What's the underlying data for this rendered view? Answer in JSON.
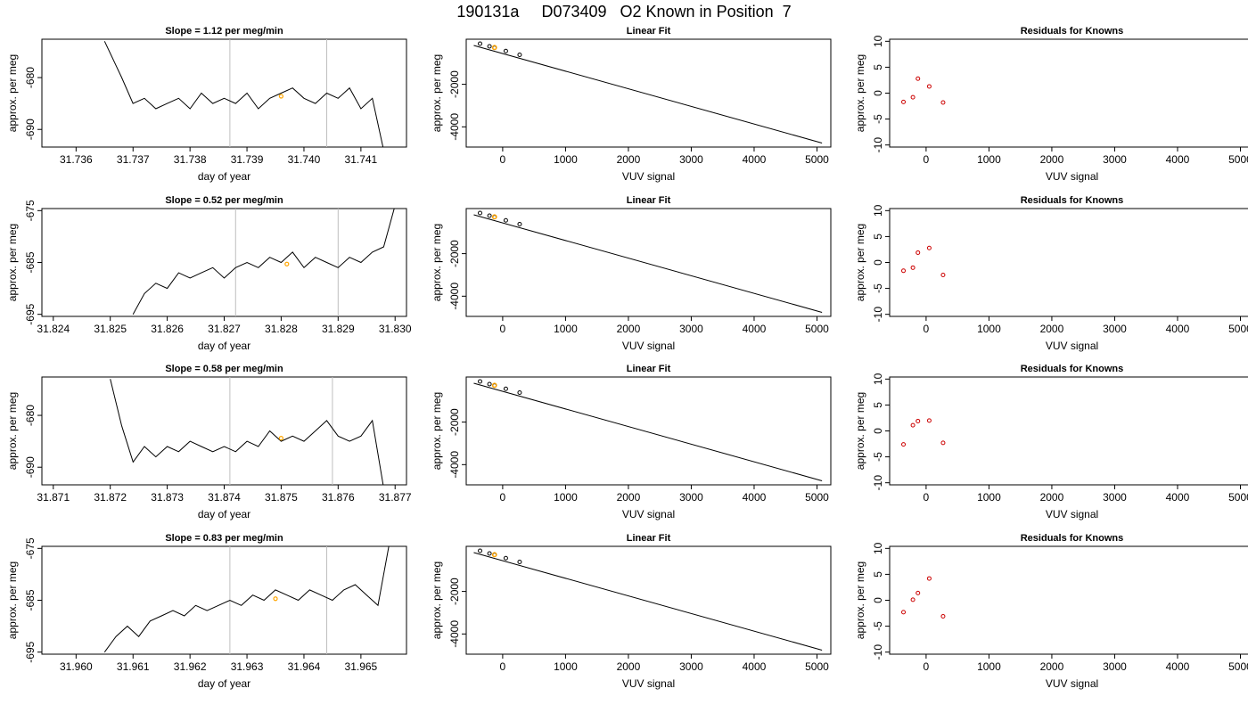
{
  "figure_title": "190131a     D073409   O2 Known in Position  7",
  "colors": {
    "trace": "#000000",
    "marker_current": "#FFA500",
    "residual": "#CC0000",
    "vline": "#BEBEBE",
    "frame": "#000000"
  },
  "chart_data": [
    {
      "type": "line",
      "title": "Slope =  1.12  per meg/min",
      "xlabel": "day of year",
      "ylabel": "approx. per meg",
      "xlim": [
        31.7354,
        31.7418
      ],
      "ylim": [
        -693.4,
        -672.6
      ],
      "xticks": [
        {
          "v": 31.736,
          "label": "31.736"
        },
        {
          "v": 31.737,
          "label": "31.737"
        },
        {
          "v": 31.738,
          "label": "31.738"
        },
        {
          "v": 31.739,
          "label": "31.739"
        },
        {
          "v": 31.74,
          "label": "31.740"
        },
        {
          "v": 31.741,
          "label": "31.741"
        }
      ],
      "yticks": [
        {
          "v": -680,
          "label": "-680"
        },
        {
          "v": -690,
          "label": "-690"
        }
      ],
      "vlines": [
        31.7387,
        31.7404
      ],
      "marker": {
        "x": 31.7396,
        "y": -683.6
      },
      "series": {
        "x": [
          31.7365,
          31.7368,
          31.737,
          31.7372,
          31.7374,
          31.7376,
          31.7378,
          31.738,
          31.7382,
          31.7384,
          31.7386,
          31.7388,
          31.739,
          31.7392,
          31.7394,
          31.7396,
          31.7398,
          31.74,
          31.7402,
          31.7404,
          31.7406,
          31.7408,
          31.741,
          31.7412,
          31.7414
        ],
        "y": [
          -673,
          -680,
          -685,
          -684,
          -686,
          -685,
          -684,
          -686,
          -683,
          -685,
          -684,
          -685,
          -683,
          -686,
          -684,
          -683,
          -682,
          -684,
          -685,
          -683,
          -684,
          -682,
          -686,
          -684,
          -694
        ]
      }
    },
    {
      "type": "scatter",
      "subtype": "linear-fit",
      "title": "Linear Fit",
      "xlabel": "VUV signal",
      "ylabel": "approx. per meg",
      "xlim": [
        -580,
        5220
      ],
      "ylim": [
        -4950,
        120
      ],
      "xticks": [
        {
          "v": 0,
          "label": "0"
        },
        {
          "v": 1000,
          "label": "1000"
        },
        {
          "v": 2000,
          "label": "2000"
        },
        {
          "v": 3000,
          "label": "3000"
        },
        {
          "v": 4000,
          "label": "4000"
        },
        {
          "v": 5000,
          "label": "5000"
        }
      ],
      "yticks": [
        {
          "v": -2000,
          "label": "-2000"
        },
        {
          "v": -4000,
          "label": "-4000"
        }
      ],
      "fit_line": [
        [
          -460,
          -175
        ],
        [
          5080,
          -4760
        ]
      ],
      "points": {
        "x": [
          -360,
          -210,
          -130,
          50,
          270
        ],
        "y": [
          -90,
          -215,
          -285,
          -435,
          -615
        ]
      },
      "marker": {
        "x": -130,
        "y": -270
      }
    },
    {
      "type": "scatter",
      "subtype": "residuals",
      "title": "Residuals for Knowns",
      "xlabel": "VUV signal",
      "ylabel": "approx. per meg",
      "xlim": [
        -580,
        5220
      ],
      "ylim": [
        -10.4,
        10.4
      ],
      "xticks": [
        {
          "v": 0,
          "label": "0"
        },
        {
          "v": 1000,
          "label": "1000"
        },
        {
          "v": 2000,
          "label": "2000"
        },
        {
          "v": 3000,
          "label": "3000"
        },
        {
          "v": 4000,
          "label": "4000"
        },
        {
          "v": 5000,
          "label": "5000"
        }
      ],
      "yticks": [
        {
          "v": 10,
          "label": "10"
        },
        {
          "v": 5,
          "label": "5"
        },
        {
          "v": 0,
          "label": "0"
        },
        {
          "v": -5,
          "label": "-5"
        },
        {
          "v": -10,
          "label": "-10"
        }
      ],
      "points": {
        "x": [
          -360,
          -210,
          -130,
          50,
          270
        ],
        "y": [
          -1.7,
          -0.8,
          2.8,
          1.3,
          -1.8
        ]
      }
    },
    {
      "type": "line",
      "title": "Slope =  0.52  per meg/min",
      "xlabel": "day of year",
      "ylabel": "approx. per meg",
      "xlim": [
        31.8238,
        31.8302
      ],
      "ylim": [
        -695.4,
        -674.6
      ],
      "xticks": [
        {
          "v": 31.824,
          "label": "31.824"
        },
        {
          "v": 31.825,
          "label": "31.825"
        },
        {
          "v": 31.826,
          "label": "31.826"
        },
        {
          "v": 31.827,
          "label": "31.827"
        },
        {
          "v": 31.828,
          "label": "31.828"
        },
        {
          "v": 31.829,
          "label": "31.829"
        },
        {
          "v": 31.83,
          "label": "31.830"
        }
      ],
      "yticks": [
        {
          "v": -675,
          "label": "-675"
        },
        {
          "v": -685,
          "label": "-685"
        },
        {
          "v": -695,
          "label": "-695"
        }
      ],
      "vlines": [
        31.8272,
        31.829
      ],
      "marker": {
        "x": 31.8281,
        "y": -685.3
      },
      "series": {
        "x": [
          31.8254,
          31.8256,
          31.8258,
          31.826,
          31.8262,
          31.8264,
          31.8266,
          31.8268,
          31.827,
          31.8272,
          31.8274,
          31.8276,
          31.8278,
          31.828,
          31.8282,
          31.8284,
          31.8286,
          31.8288,
          31.829,
          31.8292,
          31.8294,
          31.8296,
          31.8298,
          31.83
        ],
        "y": [
          -695,
          -691,
          -689,
          -690,
          -687,
          -688,
          -687,
          -686,
          -688,
          -686,
          -685,
          -686,
          -684,
          -685,
          -683,
          -686,
          -684,
          -685,
          -686,
          -684,
          -685,
          -683,
          -682,
          -674
        ]
      }
    },
    {
      "type": "scatter",
      "subtype": "linear-fit",
      "title": "Linear Fit",
      "xlabel": "VUV signal",
      "ylabel": "approx. per meg",
      "xlim": [
        -580,
        5220
      ],
      "ylim": [
        -4950,
        120
      ],
      "xticks": [
        {
          "v": 0,
          "label": "0"
        },
        {
          "v": 1000,
          "label": "1000"
        },
        {
          "v": 2000,
          "label": "2000"
        },
        {
          "v": 3000,
          "label": "3000"
        },
        {
          "v": 4000,
          "label": "4000"
        },
        {
          "v": 5000,
          "label": "5000"
        }
      ],
      "yticks": [
        {
          "v": -2000,
          "label": "-2000"
        },
        {
          "v": -4000,
          "label": "-4000"
        }
      ],
      "fit_line": [
        [
          -460,
          -175
        ],
        [
          5080,
          -4760
        ]
      ],
      "points": {
        "x": [
          -360,
          -210,
          -130,
          50,
          270
        ],
        "y": [
          -90,
          -215,
          -285,
          -435,
          -615
        ]
      },
      "marker": {
        "x": -130,
        "y": -270
      }
    },
    {
      "type": "scatter",
      "subtype": "residuals",
      "title": "Residuals for Knowns",
      "xlabel": "VUV signal",
      "ylabel": "approx. per meg",
      "xlim": [
        -580,
        5220
      ],
      "ylim": [
        -10.4,
        10.4
      ],
      "xticks": [
        {
          "v": 0,
          "label": "0"
        },
        {
          "v": 1000,
          "label": "1000"
        },
        {
          "v": 2000,
          "label": "2000"
        },
        {
          "v": 3000,
          "label": "3000"
        },
        {
          "v": 4000,
          "label": "4000"
        },
        {
          "v": 5000,
          "label": "5000"
        }
      ],
      "yticks": [
        {
          "v": 10,
          "label": "10"
        },
        {
          "v": 5,
          "label": "5"
        },
        {
          "v": 0,
          "label": "0"
        },
        {
          "v": -5,
          "label": "-5"
        },
        {
          "v": -10,
          "label": "-10"
        }
      ],
      "points": {
        "x": [
          -360,
          -210,
          -130,
          50,
          270
        ],
        "y": [
          -1.6,
          -1.0,
          1.9,
          2.8,
          -2.4
        ]
      }
    },
    {
      "type": "line",
      "title": "Slope =  0.58  per meg/min",
      "xlabel": "day of year",
      "ylabel": "approx. per meg",
      "xlim": [
        31.8708,
        31.8772
      ],
      "ylim": [
        -693.4,
        -672.6
      ],
      "xticks": [
        {
          "v": 31.871,
          "label": "31.871"
        },
        {
          "v": 31.872,
          "label": "31.872"
        },
        {
          "v": 31.873,
          "label": "31.873"
        },
        {
          "v": 31.874,
          "label": "31.874"
        },
        {
          "v": 31.875,
          "label": "31.875"
        },
        {
          "v": 31.876,
          "label": "31.876"
        },
        {
          "v": 31.877,
          "label": "31.877"
        }
      ],
      "yticks": [
        {
          "v": -680,
          "label": "-680"
        },
        {
          "v": -690,
          "label": "-690"
        }
      ],
      "vlines": [
        31.8741,
        31.8759
      ],
      "marker": {
        "x": 31.875,
        "y": -684.4
      },
      "series": {
        "x": [
          31.872,
          31.8722,
          31.8724,
          31.8726,
          31.8728,
          31.873,
          31.8732,
          31.8734,
          31.8736,
          31.8738,
          31.874,
          31.8742,
          31.8744,
          31.8746,
          31.8748,
          31.875,
          31.8752,
          31.8754,
          31.8756,
          31.8758,
          31.876,
          31.8762,
          31.8764,
          31.8766,
          31.8768
        ],
        "y": [
          -673,
          -682,
          -689,
          -686,
          -688,
          -686,
          -687,
          -685,
          -686,
          -687,
          -686,
          -687,
          -685,
          -686,
          -683,
          -685,
          -684,
          -685,
          -683,
          -681,
          -684,
          -685,
          -684,
          -681,
          -694
        ]
      }
    },
    {
      "type": "scatter",
      "subtype": "linear-fit",
      "title": "Linear Fit",
      "xlabel": "VUV signal",
      "ylabel": "approx. per meg",
      "xlim": [
        -580,
        5220
      ],
      "ylim": [
        -4950,
        120
      ],
      "xticks": [
        {
          "v": 0,
          "label": "0"
        },
        {
          "v": 1000,
          "label": "1000"
        },
        {
          "v": 2000,
          "label": "2000"
        },
        {
          "v": 3000,
          "label": "3000"
        },
        {
          "v": 4000,
          "label": "4000"
        },
        {
          "v": 5000,
          "label": "5000"
        }
      ],
      "yticks": [
        {
          "v": -2000,
          "label": "-2000"
        },
        {
          "v": -4000,
          "label": "-4000"
        }
      ],
      "fit_line": [
        [
          -460,
          -175
        ],
        [
          5080,
          -4760
        ]
      ],
      "points": {
        "x": [
          -360,
          -210,
          -130,
          50,
          270
        ],
        "y": [
          -90,
          -215,
          -285,
          -435,
          -615
        ]
      },
      "marker": {
        "x": -130,
        "y": -270
      }
    },
    {
      "type": "scatter",
      "subtype": "residuals",
      "title": "Residuals for Knowns",
      "xlabel": "VUV signal",
      "ylabel": "approx. per meg",
      "xlim": [
        -580,
        5220
      ],
      "ylim": [
        -10.4,
        10.4
      ],
      "xticks": [
        {
          "v": 0,
          "label": "0"
        },
        {
          "v": 1000,
          "label": "1000"
        },
        {
          "v": 2000,
          "label": "2000"
        },
        {
          "v": 3000,
          "label": "3000"
        },
        {
          "v": 4000,
          "label": "4000"
        },
        {
          "v": 5000,
          "label": "5000"
        }
      ],
      "yticks": [
        {
          "v": 10,
          "label": "10"
        },
        {
          "v": 5,
          "label": "5"
        },
        {
          "v": 0,
          "label": "0"
        },
        {
          "v": -5,
          "label": "-5"
        },
        {
          "v": -10,
          "label": "-10"
        }
      ],
      "points": {
        "x": [
          -360,
          -210,
          -130,
          50,
          270
        ],
        "y": [
          -2.6,
          1.1,
          1.9,
          2.0,
          -2.3
        ]
      }
    },
    {
      "type": "line",
      "title": "Slope =  0.83  per meg/min",
      "xlabel": "day of year",
      "ylabel": "approx. per meg",
      "xlim": [
        31.9594,
        31.9658
      ],
      "ylim": [
        -695.4,
        -674.6
      ],
      "xticks": [
        {
          "v": 31.96,
          "label": "31.960"
        },
        {
          "v": 31.961,
          "label": "31.961"
        },
        {
          "v": 31.962,
          "label": "31.962"
        },
        {
          "v": 31.963,
          "label": "31.963"
        },
        {
          "v": 31.964,
          "label": "31.964"
        },
        {
          "v": 31.965,
          "label": "31.965"
        }
      ],
      "yticks": [
        {
          "v": -675,
          "label": "-675"
        },
        {
          "v": -685,
          "label": "-685"
        },
        {
          "v": -695,
          "label": "-695"
        }
      ],
      "vlines": [
        31.9627,
        31.9644
      ],
      "marker": {
        "x": 31.9635,
        "y": -684.7
      },
      "series": {
        "x": [
          31.9605,
          31.9607,
          31.9609,
          31.9611,
          31.9613,
          31.9615,
          31.9617,
          31.9619,
          31.9621,
          31.9623,
          31.9625,
          31.9627,
          31.9629,
          31.9631,
          31.9633,
          31.9635,
          31.9637,
          31.9639,
          31.9641,
          31.9643,
          31.9645,
          31.9647,
          31.9649,
          31.9651,
          31.9653,
          31.9655
        ],
        "y": [
          -695,
          -692,
          -690,
          -692,
          -689,
          -688,
          -687,
          -688,
          -686,
          -687,
          -686,
          -685,
          -686,
          -684,
          -685,
          -683,
          -684,
          -685,
          -683,
          -684,
          -685,
          -683,
          -682,
          -684,
          -686,
          -674
        ]
      }
    },
    {
      "type": "scatter",
      "subtype": "linear-fit",
      "title": "Linear Fit",
      "xlabel": "VUV signal",
      "ylabel": "approx. per meg",
      "xlim": [
        -580,
        5220
      ],
      "ylim": [
        -4950,
        120
      ],
      "xticks": [
        {
          "v": 0,
          "label": "0"
        },
        {
          "v": 1000,
          "label": "1000"
        },
        {
          "v": 2000,
          "label": "2000"
        },
        {
          "v": 3000,
          "label": "3000"
        },
        {
          "v": 4000,
          "label": "4000"
        },
        {
          "v": 5000,
          "label": "5000"
        }
      ],
      "yticks": [
        {
          "v": -2000,
          "label": "-2000"
        },
        {
          "v": -4000,
          "label": "-4000"
        }
      ],
      "fit_line": [
        [
          -460,
          -175
        ],
        [
          5080,
          -4760
        ]
      ],
      "points": {
        "x": [
          -360,
          -210,
          -130,
          50,
          270
        ],
        "y": [
          -90,
          -215,
          -285,
          -435,
          -615
        ]
      },
      "marker": {
        "x": -130,
        "y": -270
      }
    },
    {
      "type": "scatter",
      "subtype": "residuals",
      "title": "Residuals for Knowns",
      "xlabel": "VUV signal",
      "ylabel": "approx. per meg",
      "xlim": [
        -580,
        5220
      ],
      "ylim": [
        -10.4,
        10.4
      ],
      "xticks": [
        {
          "v": 0,
          "label": "0"
        },
        {
          "v": 1000,
          "label": "1000"
        },
        {
          "v": 2000,
          "label": "2000"
        },
        {
          "v": 3000,
          "label": "3000"
        },
        {
          "v": 4000,
          "label": "4000"
        },
        {
          "v": 5000,
          "label": "5000"
        }
      ],
      "yticks": [
        {
          "v": 10,
          "label": "10"
        },
        {
          "v": 5,
          "label": "5"
        },
        {
          "v": 0,
          "label": "0"
        },
        {
          "v": -5,
          "label": "-5"
        },
        {
          "v": -10,
          "label": "-10"
        }
      ],
      "points": {
        "x": [
          -360,
          -210,
          -130,
          50,
          270
        ],
        "y": [
          -2.3,
          0.1,
          1.4,
          4.2,
          -3.1
        ]
      }
    }
  ]
}
